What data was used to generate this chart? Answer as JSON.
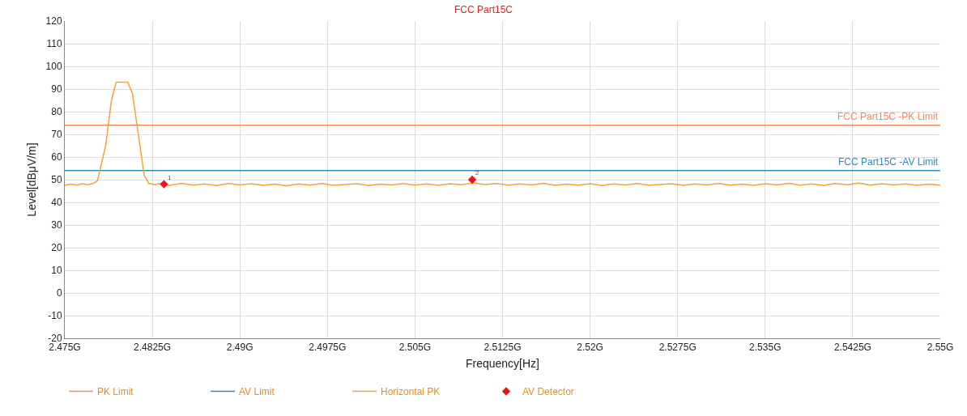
{
  "chart_data": {
    "type": "line",
    "title": "FCC Part15C",
    "xlabel": "Frequency[Hz]",
    "ylabel": "Level[dBμV/m]",
    "xlim": [
      2.475,
      2.55
    ],
    "xticks": [
      {
        "value": 2.475,
        "label": "2.475G"
      },
      {
        "value": 2.4825,
        "label": "2.4825G"
      },
      {
        "value": 2.49,
        "label": "2.49G"
      },
      {
        "value": 2.4975,
        "label": "2.4975G"
      },
      {
        "value": 2.505,
        "label": "2.505G"
      },
      {
        "value": 2.5125,
        "label": "2.5125G"
      },
      {
        "value": 2.52,
        "label": "2.52G"
      },
      {
        "value": 2.5275,
        "label": "2.5275G"
      },
      {
        "value": 2.535,
        "label": "2.535G"
      },
      {
        "value": 2.5425,
        "label": "2.5425G"
      },
      {
        "value": 2.55,
        "label": "2.55G"
      }
    ],
    "ylim": [
      -20,
      120
    ],
    "yticks": [
      -20,
      -10,
      0,
      10,
      20,
      30,
      40,
      50,
      60,
      70,
      80,
      90,
      100,
      110,
      120
    ],
    "grid": true,
    "legend": "bottom",
    "series": [
      {
        "name": "PK Limit",
        "color": "#f08c5a",
        "marker": "none",
        "x": [
          2.475,
          2.55
        ],
        "values": [
          74,
          74
        ]
      },
      {
        "name": "AV Limit",
        "color": "#2a8cc4",
        "marker": "none",
        "x": [
          2.475,
          2.55
        ],
        "values": [
          54,
          54
        ]
      },
      {
        "name": "Horizontal PK",
        "color": "#f5a236",
        "marker": "none",
        "x": [
          2.475,
          2.4755,
          2.476,
          2.4765,
          2.477,
          2.4775,
          2.4778,
          2.4785,
          2.479,
          2.4794,
          2.4804,
          2.4808,
          2.4813,
          2.4818,
          2.4822,
          2.4828,
          2.483,
          2.484,
          2.485,
          2.486,
          2.487,
          2.488,
          2.489,
          2.49,
          2.491,
          2.492,
          2.493,
          2.494,
          2.495,
          2.496,
          2.497,
          2.498,
          2.499,
          2.5,
          2.501,
          2.502,
          2.503,
          2.504,
          2.505,
          2.506,
          2.507,
          2.508,
          2.509,
          2.51,
          2.511,
          2.512,
          2.513,
          2.514,
          2.515,
          2.516,
          2.517,
          2.518,
          2.519,
          2.52,
          2.521,
          2.522,
          2.523,
          2.524,
          2.525,
          2.526,
          2.527,
          2.528,
          2.529,
          2.53,
          2.531,
          2.532,
          2.533,
          2.534,
          2.535,
          2.536,
          2.537,
          2.538,
          2.539,
          2.54,
          2.541,
          2.542,
          2.543,
          2.544,
          2.545,
          2.546,
          2.547,
          2.548,
          2.549,
          2.55
        ],
        "values": [
          47.5,
          48.0,
          47.6,
          48.2,
          47.8,
          48.5,
          49.5,
          65,
          85,
          93,
          93,
          88,
          70,
          52,
          48.3,
          47.8,
          48.2,
          47.5,
          48.4,
          47.6,
          48.1,
          47.4,
          48.3,
          47.7,
          48.2,
          47.5,
          48.0,
          47.3,
          48.1,
          47.6,
          48.3,
          47.5,
          47.9,
          48.2,
          47.4,
          48.0,
          47.7,
          48.3,
          47.6,
          48.1,
          47.5,
          48.2,
          47.8,
          48.6,
          47.9,
          48.3,
          47.6,
          48.1,
          47.7,
          48.4,
          47.5,
          48.0,
          47.6,
          48.2,
          47.4,
          48.1,
          47.7,
          48.3,
          47.6,
          47.9,
          48.2,
          47.5,
          48.1,
          47.7,
          48.3,
          47.6,
          48.0,
          47.5,
          48.2,
          47.7,
          48.4,
          47.6,
          48.1,
          47.5,
          48.3,
          47.8,
          48.5,
          47.6,
          48.2,
          47.7,
          48.1,
          47.5,
          48.0,
          47.6
        ]
      },
      {
        "name": "AV Detector",
        "color": "#e8141c",
        "type": "scatter",
        "marker": "diamond",
        "x": [
          2.4835,
          2.5099
        ],
        "values": [
          48,
          50
        ]
      }
    ],
    "annotations": [
      {
        "text": "FCC Part15C -PK Limit",
        "x": 2.55,
        "y": 74
      },
      {
        "text": "FCC Part15C -AV Limit",
        "x": 2.55,
        "y": 54
      },
      {
        "text": "1",
        "x": 2.4835,
        "y": 48
      },
      {
        "text": "2",
        "x": 2.5099,
        "y": 50
      }
    ]
  }
}
